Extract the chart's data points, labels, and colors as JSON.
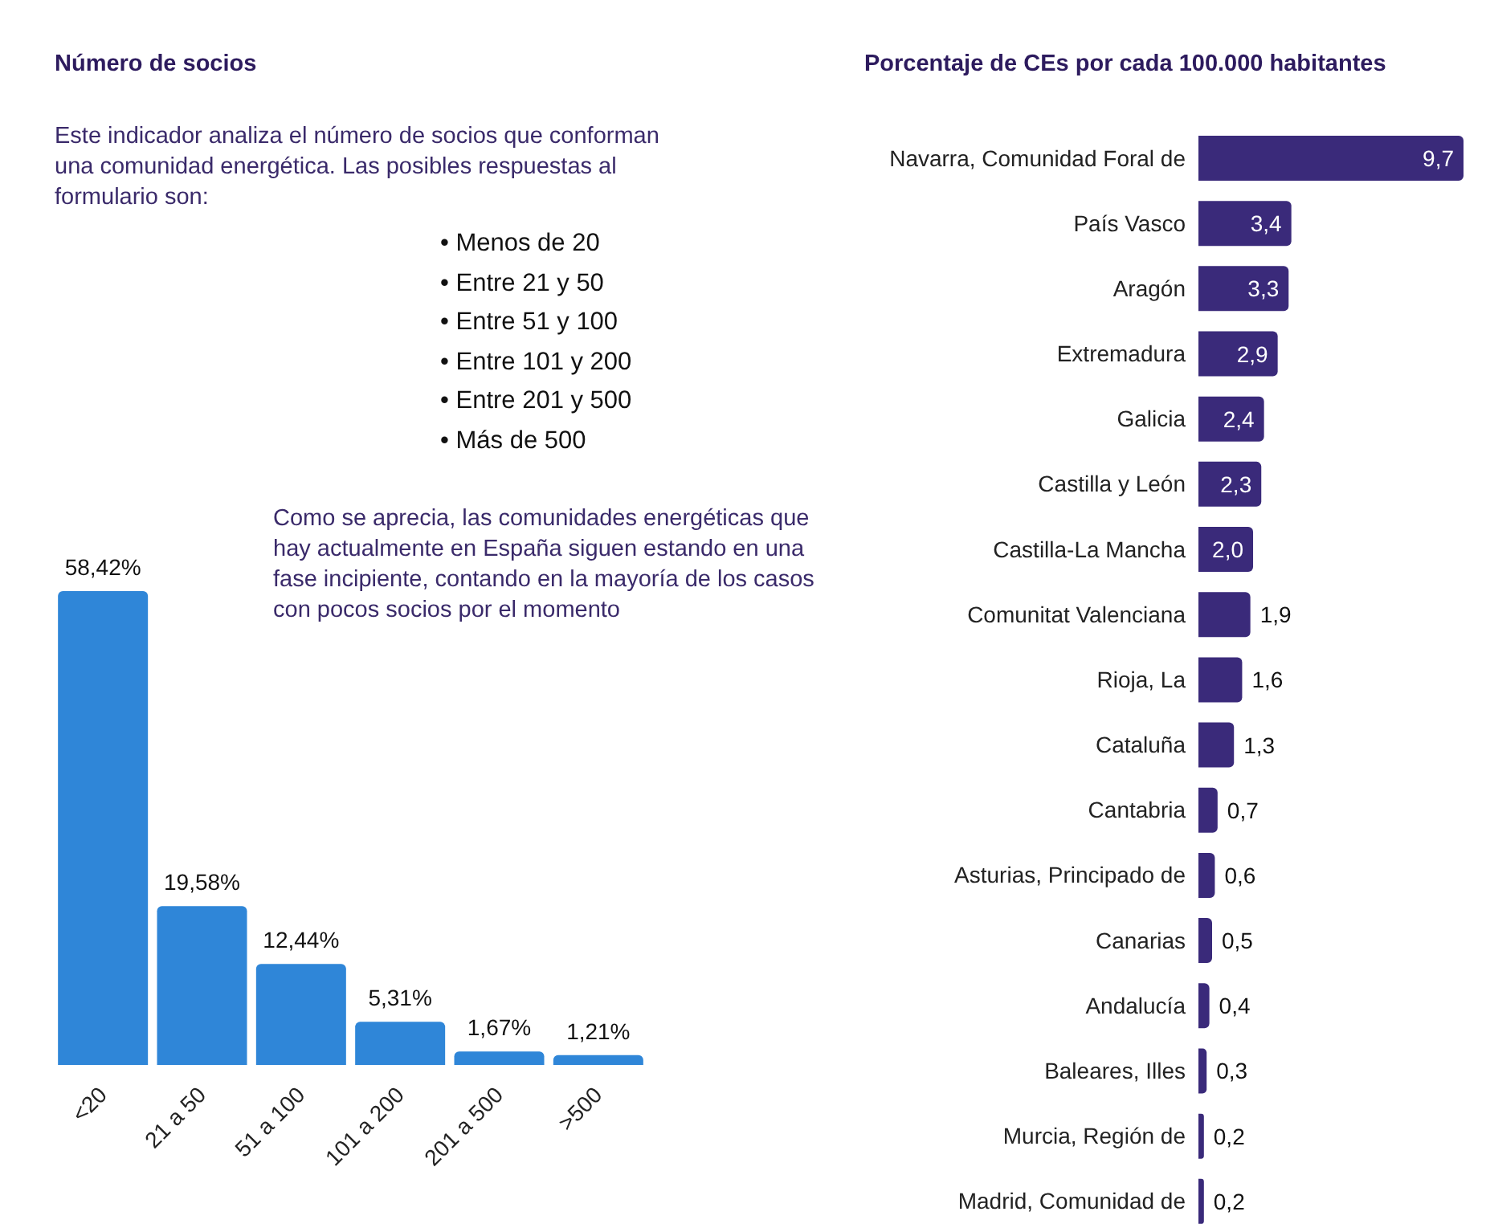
{
  "chart_data": [
    {
      "type": "bar",
      "title": "Número de socios",
      "categories": [
        "<20",
        "21 a 50",
        "51 a 100",
        "101 a 200",
        "201 a 500",
        ">500"
      ],
      "values": [
        58.42,
        19.58,
        12.44,
        5.31,
        1.67,
        1.21
      ],
      "value_labels": [
        "58,42%",
        "19,58%",
        "12,44%",
        "5,31%",
        "1,67%",
        "1,21%"
      ],
      "color": "#2f86d8",
      "annotations": [
        "Este indicador analiza el número de socios que conforman una comunidad energética. Las posibles respuestas al formulario son:",
        "• Menos de 20",
        "• Entre 21 y 50",
        "• Entre 51 y 100",
        "• Entre 101 y 200",
        "• Entre 201 y 500",
        "• Más de 500",
        "Como se aprecia, las comunidades energéticas que hay actualmente en España siguen estando en una fase incipiente, contando en la mayoría de los casos con pocos socios por el momento"
      ]
    },
    {
      "type": "bar",
      "orientation": "horizontal",
      "title": "Porcentaje de CEs por cada 100.000 habitantes",
      "categories": [
        "Navarra, Comunidad Foral de",
        "País Vasco",
        "Aragón",
        "Extremadura",
        "Galicia",
        "Castilla y León",
        "Castilla-La Mancha",
        "Comunitat Valenciana",
        "Rioja, La",
        "Cataluña",
        "Cantabria",
        "Asturias, Principado de",
        "Canarias",
        "Andalucía",
        "Baleares, Illes",
        "Murcia, Región de",
        "Madrid, Comunidad de"
      ],
      "values": [
        9.7,
        3.4,
        3.3,
        2.9,
        2.4,
        2.3,
        2.0,
        1.9,
        1.6,
        1.3,
        0.7,
        0.6,
        0.5,
        0.4,
        0.3,
        0.2,
        0.2
      ],
      "value_labels": [
        "9,7",
        "3,4",
        "3,3",
        "2,9",
        "2,4",
        "2,3",
        "2,0",
        "1,9",
        "1,6",
        "1,3",
        "0,7",
        "0,6",
        "0,5",
        "0,4",
        "0,3",
        "0,2",
        "0,2"
      ],
      "color": "#3a2a7a"
    }
  ]
}
